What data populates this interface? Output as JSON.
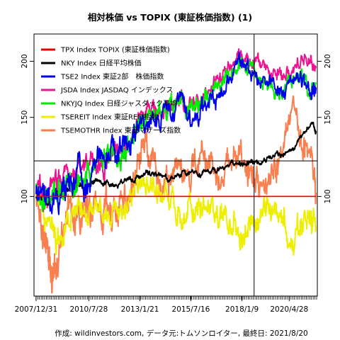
{
  "chart_data": {
    "type": "line",
    "title": "相対株価 vs TOPIX (東証株価指数) (1)",
    "footer": "作成: wildinvestors.com, データ元:トムソンロイター, 最終日: 2021/8/20",
    "x_tick_labels": [
      "2007/12/31",
      "2010/7/28",
      "2013/1/21",
      "2015/7/16",
      "2018/1/9",
      "2020/4/28"
    ],
    "x_tick_values": [
      2008.0,
      2010.57,
      2013.06,
      2015.54,
      2018.03,
      2020.33
    ],
    "xlim": [
      2007.9,
      2021.7
    ],
    "y_tick_labels": [
      "100",
      "150",
      "200"
    ],
    "y_tick_values": [
      100,
      150,
      200
    ],
    "ylim": [
      60,
      230
    ],
    "y_scale": "log",
    "crosshair": {
      "x": 2018.62,
      "y": 120
    },
    "legend_position": "top-left",
    "series": [
      {
        "name": "TPX Index TOPIX (東証株価指数)",
        "color": "#ee0000",
        "x": [
          2008.0,
          2021.63
        ],
        "y": [
          100,
          100
        ]
      },
      {
        "name": "NKY Index 日経平均株価",
        "color": "#000000",
        "x": [
          2008.0,
          2008.5,
          2009.0,
          2009.5,
          2010.0,
          2010.5,
          2011.0,
          2011.5,
          2012.0,
          2012.5,
          2013.0,
          2013.5,
          2014.0,
          2014.5,
          2015.0,
          2015.5,
          2016.0,
          2016.5,
          2017.0,
          2017.5,
          2018.0,
          2018.5,
          2019.0,
          2019.5,
          2020.0,
          2020.5,
          2021.0,
          2021.4,
          2021.63
        ],
        "y": [
          100,
          97,
          102,
          104,
          106,
          105,
          108,
          107,
          108,
          109,
          110,
          112,
          111,
          110,
          112,
          114,
          113,
          115,
          116,
          117,
          118,
          119,
          120,
          122,
          124,
          128,
          138,
          145,
          140
        ]
      },
      {
        "name": "TSE2 Index 東証2部　株価指数",
        "color": "#0000ee",
        "x": [
          2008.0,
          2008.5,
          2009.0,
          2009.5,
          2010.0,
          2010.5,
          2011.0,
          2011.5,
          2012.0,
          2012.5,
          2013.0,
          2013.5,
          2014.0,
          2014.5,
          2015.0,
          2015.5,
          2016.0,
          2016.5,
          2017.0,
          2017.5,
          2018.0,
          2018.5,
          2019.0,
          2019.5,
          2020.0,
          2020.5,
          2021.0,
          2021.4,
          2021.63
        ],
        "y": [
          103,
          98,
          100,
          105,
          110,
          112,
          118,
          122,
          125,
          130,
          140,
          150,
          148,
          155,
          160,
          150,
          155,
          165,
          175,
          185,
          200,
          190,
          185,
          180,
          170,
          175,
          178,
          176,
          175
        ]
      },
      {
        "name": "JSDA Index JASDAQ インデックス",
        "color": "#ee1290",
        "x": [
          2008.0,
          2008.5,
          2009.0,
          2009.5,
          2010.0,
          2010.5,
          2011.0,
          2011.5,
          2012.0,
          2012.5,
          2013.0,
          2013.5,
          2014.0,
          2014.5,
          2015.0,
          2015.5,
          2016.0,
          2016.5,
          2017.0,
          2017.5,
          2018.0,
          2018.5,
          2019.0,
          2019.5,
          2020.0,
          2020.5,
          2021.0,
          2021.4,
          2021.63
        ],
        "y": [
          105,
          100,
          106,
          110,
          112,
          118,
          120,
          125,
          128,
          135,
          150,
          160,
          158,
          162,
          165,
          160,
          165,
          175,
          185,
          195,
          205,
          200,
          195,
          190,
          185,
          195,
          205,
          198,
          195
        ]
      },
      {
        "name": "NKYJQ Index 日経ジャスダック平均",
        "color": "#00ee00",
        "x": [
          2008.0,
          2008.5,
          2009.0,
          2009.5,
          2010.0,
          2010.5,
          2011.0,
          2011.5,
          2012.0,
          2012.5,
          2013.0,
          2013.5,
          2014.0,
          2014.5,
          2015.0,
          2015.5,
          2016.0,
          2016.5,
          2017.0,
          2017.5,
          2018.0,
          2018.5,
          2019.0,
          2019.5,
          2020.0,
          2020.5,
          2021.0,
          2021.4,
          2021.63
        ],
        "y": [
          104,
          100,
          104,
          108,
          110,
          115,
          120,
          124,
          126,
          130,
          145,
          155,
          152,
          158,
          160,
          155,
          160,
          168,
          178,
          188,
          195,
          190,
          185,
          180,
          172,
          178,
          180,
          176,
          178
        ]
      },
      {
        "name": "TSEREIT Index 東証REIT指数",
        "color": "#eeee00",
        "x": [
          2008.0,
          2008.5,
          2009.0,
          2009.5,
          2010.0,
          2010.5,
          2011.0,
          2011.5,
          2012.0,
          2012.5,
          2013.0,
          2013.5,
          2014.0,
          2014.5,
          2015.0,
          2015.5,
          2016.0,
          2016.5,
          2017.0,
          2017.5,
          2018.0,
          2018.5,
          2019.0,
          2019.5,
          2020.0,
          2020.5,
          2021.0,
          2021.4,
          2021.63
        ],
        "y": [
          100,
          90,
          80,
          88,
          92,
          90,
          95,
          93,
          95,
          100,
          110,
          105,
          102,
          98,
          95,
          92,
          96,
          93,
          90,
          88,
          85,
          86,
          90,
          95,
          92,
          80,
          82,
          88,
          86
        ]
      },
      {
        "name": "TSEMOTHR Index 東証マザーズ指数",
        "color": "#f88050",
        "x": [
          2008.0,
          2008.3,
          2008.6,
          2009.0,
          2009.5,
          2010.0,
          2010.5,
          2011.0,
          2011.5,
          2012.0,
          2012.5,
          2013.0,
          2013.3,
          2013.6,
          2014.0,
          2014.5,
          2015.0,
          2015.5,
          2016.0,
          2016.5,
          2017.0,
          2017.5,
          2018.0,
          2018.5,
          2019.0,
          2019.5,
          2020.0,
          2020.5,
          2021.0,
          2021.4,
          2021.63
        ],
        "y": [
          100,
          85,
          75,
          70,
          95,
          85,
          90,
          95,
          88,
          92,
          100,
          120,
          130,
          125,
          110,
          105,
          115,
          108,
          125,
          118,
          112,
          120,
          125,
          115,
          105,
          110,
          115,
          160,
          130,
          118,
          102
        ]
      }
    ]
  }
}
